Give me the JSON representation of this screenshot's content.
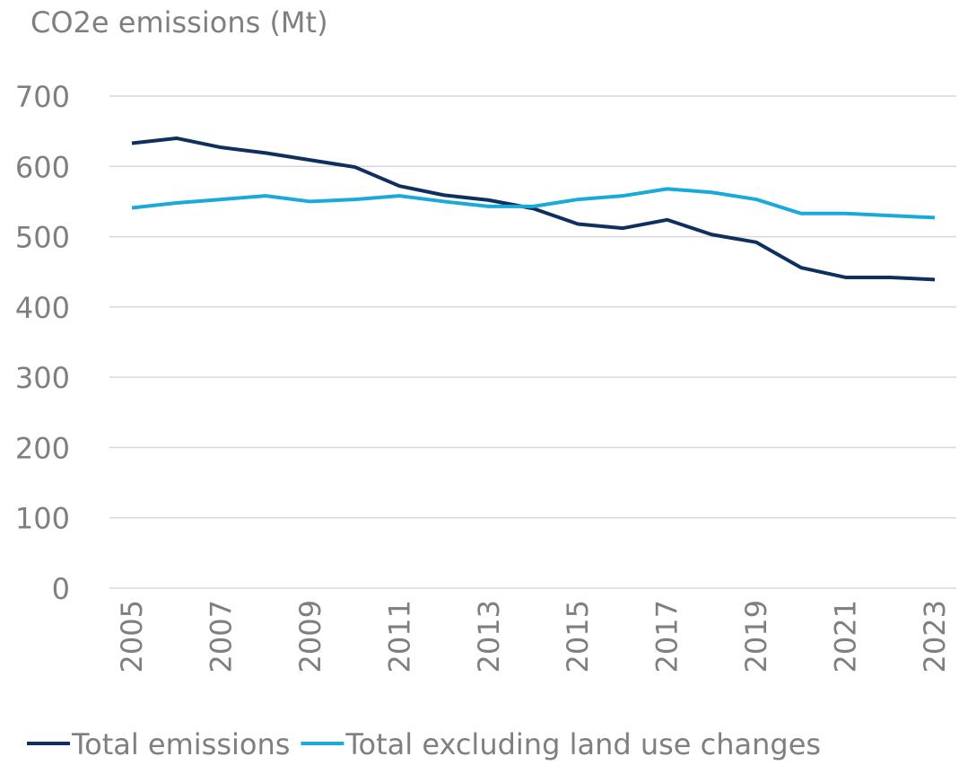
{
  "chart_data": {
    "type": "line",
    "title": "CO2e emissions (Mt)",
    "x": [
      2005,
      2006,
      2007,
      2008,
      2009,
      2010,
      2011,
      2012,
      2013,
      2014,
      2015,
      2016,
      2017,
      2018,
      2019,
      2020,
      2021,
      2022,
      2023
    ],
    "series": [
      {
        "name": "Total emissions",
        "color": "#0f2f5f",
        "values": [
          633,
          640,
          627,
          619,
          609,
          599,
          572,
          559,
          552,
          540,
          518,
          512,
          524,
          503,
          492,
          456,
          442,
          442,
          439
        ]
      },
      {
        "name": "Total excluding land use changes",
        "color": "#19aadb",
        "values": [
          541,
          548,
          553,
          558,
          550,
          553,
          558,
          550,
          543,
          543,
          553,
          558,
          568,
          563,
          553,
          533,
          533,
          530,
          527
        ]
      }
    ],
    "xlim": [
      2005,
      2023
    ],
    "xticks": [
      2005,
      2007,
      2009,
      2011,
      2013,
      2015,
      2017,
      2019,
      2021,
      2023
    ],
    "ylim": [
      0,
      700
    ],
    "yticks": [
      0,
      100,
      200,
      300,
      400,
      500,
      600,
      700
    ],
    "grid": true,
    "legend": "bottom"
  }
}
